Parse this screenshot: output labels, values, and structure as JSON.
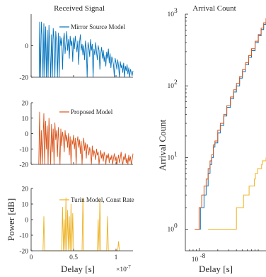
{
  "chart_data": [
    {
      "id": "received-mirror",
      "type": "line",
      "title": "Received Signal",
      "xlabel": "",
      "ylabel": "",
      "xlim": [
        0,
        1.2e-07
      ],
      "ylim": [
        -20,
        20
      ],
      "yticks": [
        -20,
        0
      ],
      "series": [
        {
          "name": "Mirror Source Model",
          "color": "#0072BD",
          "x": [
            0.095,
            0.1,
            0.11,
            0.12,
            0.13,
            0.14,
            0.15,
            0.16,
            0.17,
            0.18,
            0.19,
            0.2,
            0.21,
            0.22,
            0.23,
            0.24,
            0.25,
            0.26,
            0.27,
            0.28,
            0.29,
            0.3,
            0.31,
            0.32,
            0.33,
            0.34,
            0.35,
            0.36,
            0.37,
            0.38,
            0.39,
            0.4,
            0.41,
            0.42,
            0.43,
            0.44,
            0.45,
            0.46,
            0.47,
            0.48,
            0.49,
            0.5,
            0.51,
            0.52,
            0.53,
            0.54,
            0.55,
            0.56,
            0.57,
            0.58,
            0.59,
            0.6,
            0.61,
            0.62,
            0.63,
            0.64,
            0.65,
            0.66,
            0.67,
            0.68,
            0.69,
            0.7,
            0.71,
            0.72,
            0.73,
            0.74,
            0.75,
            0.76,
            0.77,
            0.78,
            0.79,
            0.8,
            0.81,
            0.82,
            0.83,
            0.84,
            0.85,
            0.86,
            0.87,
            0.88,
            0.89,
            0.9,
            0.91,
            0.92,
            0.93,
            0.94,
            0.95,
            0.96,
            0.97,
            0.98,
            0.99,
            1.0,
            1.01,
            1.02,
            1.03,
            1.04,
            1.05,
            1.06,
            1.07,
            1.08,
            1.09,
            1.1,
            1.11,
            1.12,
            1.13,
            1.14,
            1.15,
            1.16,
            1.17,
            1.18,
            1.19,
            1.2
          ],
          "y": [
            -20,
            15,
            -20,
            15,
            5,
            -20,
            14,
            -20,
            12,
            -20,
            10,
            -20,
            13,
            -2,
            -20,
            7,
            -20,
            11,
            4,
            -20,
            9,
            2,
            -20,
            8,
            -20,
            6,
            0,
            5,
            -15,
            3,
            8,
            -5,
            2,
            9,
            -3,
            4,
            -8,
            6,
            0,
            3,
            -10,
            5,
            -2,
            6,
            1,
            -4,
            3,
            -12,
            2,
            7,
            -3,
            1,
            -6,
            0,
            -9,
            3,
            -2,
            -20,
            2,
            -1,
            -7,
            4,
            -3,
            1,
            -20,
            -2,
            -6,
            2,
            -4,
            -9,
            0,
            -3,
            -15,
            -5,
            -1,
            -8,
            -3,
            -10,
            -6,
            -13,
            -4,
            -8,
            -2,
            -11,
            -5,
            -14,
            -7,
            -9,
            -12,
            -20,
            -8,
            -11,
            -15,
            -9,
            -13,
            -20,
            -10,
            -14,
            -12,
            -17,
            -11,
            -20,
            -13,
            -16,
            -12,
            -18,
            -14,
            -20,
            -15,
            -17,
            -19,
            -16
          ]
        }
      ]
    },
    {
      "id": "received-proposed",
      "type": "line",
      "title": "",
      "xlabel": "",
      "ylabel": "",
      "xlim": [
        0,
        1.2e-07
      ],
      "ylim": [
        -20,
        20
      ],
      "yticks": [
        -20,
        -10,
        0,
        10,
        20
      ],
      "series": [
        {
          "name": "Proposed Model",
          "color": "#D95319",
          "x": [
            0.09,
            0.1,
            0.11,
            0.12,
            0.13,
            0.14,
            0.15,
            0.16,
            0.17,
            0.18,
            0.19,
            0.2,
            0.21,
            0.22,
            0.23,
            0.24,
            0.25,
            0.26,
            0.27,
            0.28,
            0.29,
            0.3,
            0.31,
            0.32,
            0.33,
            0.34,
            0.35,
            0.36,
            0.37,
            0.38,
            0.39,
            0.4,
            0.41,
            0.42,
            0.43,
            0.44,
            0.45,
            0.46,
            0.47,
            0.48,
            0.49,
            0.5,
            0.51,
            0.52,
            0.53,
            0.54,
            0.55,
            0.56,
            0.57,
            0.58,
            0.59,
            0.6,
            0.61,
            0.62,
            0.63,
            0.64,
            0.65,
            0.66,
            0.67,
            0.68,
            0.69,
            0.7,
            0.71,
            0.72,
            0.73,
            0.74,
            0.75,
            0.76,
            0.77,
            0.78,
            0.79,
            0.8,
            0.81,
            0.82,
            0.83,
            0.84,
            0.85,
            0.86,
            0.87,
            0.88,
            0.89,
            0.9,
            0.91,
            0.92,
            0.93,
            0.94,
            0.95,
            0.96,
            0.97,
            0.98,
            0.99,
            1.0,
            1.01,
            1.02,
            1.03,
            1.04,
            1.05,
            1.06,
            1.07,
            1.08,
            1.09,
            1.1,
            1.11,
            1.12,
            1.13,
            1.14,
            1.15,
            1.16,
            1.17,
            1.18,
            1.19,
            1.2
          ],
          "y": [
            -20,
            14,
            -20,
            2,
            -20,
            -5,
            13,
            -20,
            8,
            -10,
            5,
            -20,
            10,
            -3,
            -20,
            6,
            -12,
            3,
            -20,
            7,
            -4,
            2,
            -15,
            4,
            -6,
            -20,
            3,
            -8,
            1,
            -3,
            -12,
            2,
            -5,
            -1,
            -9,
            0,
            -14,
            -2,
            -20,
            -4,
            -7,
            -1,
            -10,
            -3,
            -20,
            -6,
            -2,
            -9,
            -4,
            -13,
            -5,
            -20,
            -8,
            -3,
            -11,
            -6,
            -16,
            -7,
            -10,
            -14,
            -9,
            -12,
            -20,
            -8,
            -15,
            -11,
            -13,
            -17,
            -10,
            -14,
            -12,
            -20,
            -15,
            -11,
            -16,
            -13,
            -18,
            -12,
            -15,
            -20,
            -14,
            -16,
            -13,
            -19,
            -15,
            -17,
            -14,
            -20,
            -16,
            -13,
            -18,
            -15,
            -20,
            -17,
            -14,
            -19,
            -16,
            -12,
            -18,
            -20,
            -15,
            -17,
            -13,
            -19,
            -16,
            -20,
            -14,
            -18,
            -15,
            -20,
            -17,
            -13
          ]
        }
      ]
    },
    {
      "id": "received-turin",
      "type": "line",
      "title": "",
      "xlabel": "Delay [s]",
      "ylabel": "Power [dB]",
      "x_exponent": "×10^-7",
      "xlim": [
        0,
        1.2e-07
      ],
      "ylim": [
        -20,
        20
      ],
      "xticks": [
        0,
        0.5,
        1
      ],
      "yticks": [
        -20,
        -10,
        0,
        10,
        20
      ],
      "series": [
        {
          "name": "Turin Model, Const Rate",
          "color": "#EDB120",
          "x": [
            0.14,
            0.15,
            0.16,
            0.36,
            0.37,
            0.38,
            0.39,
            0.4,
            0.41,
            0.42,
            0.43,
            0.44,
            0.45,
            0.46,
            0.47,
            0.48,
            0.49,
            0.5,
            0.51,
            0.52,
            0.53,
            0.54,
            0.55,
            0.56,
            0.57,
            0.58,
            0.59,
            0.6,
            0.61,
            0.62,
            0.63,
            0.64,
            0.78,
            0.79,
            0.8,
            0.81,
            0.82,
            0.83,
            0.84,
            0.85,
            0.86,
            0.87,
            0.88,
            0.89,
            0.9,
            0.91,
            1.02,
            1.03,
            1.04
          ],
          "y": [
            -20,
            2,
            -20,
            -20,
            8,
            -20,
            0,
            -20,
            14,
            -20,
            6,
            -20,
            2,
            -20,
            10,
            -20,
            4,
            -20,
            -20,
            -20,
            -20,
            -20,
            -20,
            -20,
            -20,
            -20,
            -20,
            -20,
            14,
            -20,
            -20,
            -20,
            -20,
            0,
            -20,
            13,
            -20,
            -20,
            -20,
            -20,
            -20,
            -20,
            -20,
            -20,
            2,
            -20,
            -20,
            -14,
            -20
          ]
        }
      ]
    },
    {
      "id": "arrival-count",
      "type": "line",
      "title": "Arrival Count",
      "xlabel": "Delay [s]",
      "ylabel": "Arrival Count",
      "xscale": "log",
      "yscale": "log",
      "xlim": [
        6e-09,
        1.2e-07
      ],
      "ylim": [
        0.5,
        1000
      ],
      "xtick_labels": [
        "10^-8"
      ],
      "ytick_labels": [
        "10^0",
        "10^1",
        "10^2",
        "10^3"
      ],
      "series": [
        {
          "name": "Mirror Source Model",
          "color": "#0072BD",
          "x": [
            9.5e-09,
            1e-08,
            1.05e-08,
            1.1e-08,
            1.2e-08,
            1.3e-08,
            1.4e-08,
            1.5e-08,
            1.6e-08,
            1.7e-08,
            1.8e-08,
            2e-08,
            2.2e-08,
            2.5e-08,
            2.8e-08,
            3.2e-08,
            3.6e-08,
            4e-08,
            4.5e-08,
            5e-08,
            5.6e-08,
            6.3e-08,
            7e-08,
            8e-08,
            9e-08,
            1e-07,
            1.1e-07,
            1.2e-07
          ],
          "y": [
            1,
            1,
            2,
            2,
            3,
            4,
            6,
            8,
            10,
            14,
            16,
            22,
            28,
            38,
            50,
            66,
            82,
            100,
            128,
            158,
            198,
            250,
            310,
            400,
            500,
            610,
            720,
            840
          ]
        },
        {
          "name": "Proposed Model",
          "color": "#D95319",
          "x": [
            8.5e-09,
            9e-09,
            1e-08,
            1.05e-08,
            1.1e-08,
            1.2e-08,
            1.3e-08,
            1.4e-08,
            1.5e-08,
            1.6e-08,
            1.7e-08,
            1.8e-08,
            2e-08,
            2.2e-08,
            2.5e-08,
            2.8e-08,
            3.2e-08,
            3.6e-08,
            4e-08,
            4.5e-08,
            5e-08,
            5.6e-08,
            6.3e-08,
            7e-08,
            8e-08,
            9e-08,
            1e-07,
            1.1e-07,
            1.2e-07
          ],
          "y": [
            1,
            1,
            2,
            2,
            3,
            4,
            5,
            7,
            9,
            11,
            15,
            17,
            24,
            30,
            40,
            53,
            70,
            88,
            108,
            135,
            168,
            210,
            265,
            330,
            420,
            520,
            640,
            760,
            880
          ]
        },
        {
          "name": "Turin Model, Const Rate",
          "color": "#EDB120",
          "x": [
            1.4e-08,
            2e-08,
            3.6e-08,
            4e-08,
            4.6e-08,
            5.2e-08,
            6.1e-08,
            6.4e-08,
            7.8e-08,
            8.1e-08,
            8.8e-08,
            1.02e-07,
            1.05e-07,
            1.1e-07,
            1.2e-07
          ],
          "y": [
            1,
            1,
            1,
            2,
            2,
            3,
            3,
            4,
            5,
            6,
            7,
            8,
            9,
            9,
            10
          ]
        }
      ]
    }
  ],
  "legends": {
    "mirror": "Mirror Source Model",
    "proposed": "Proposed Model",
    "turin": "Turin Model, Const Rate"
  }
}
